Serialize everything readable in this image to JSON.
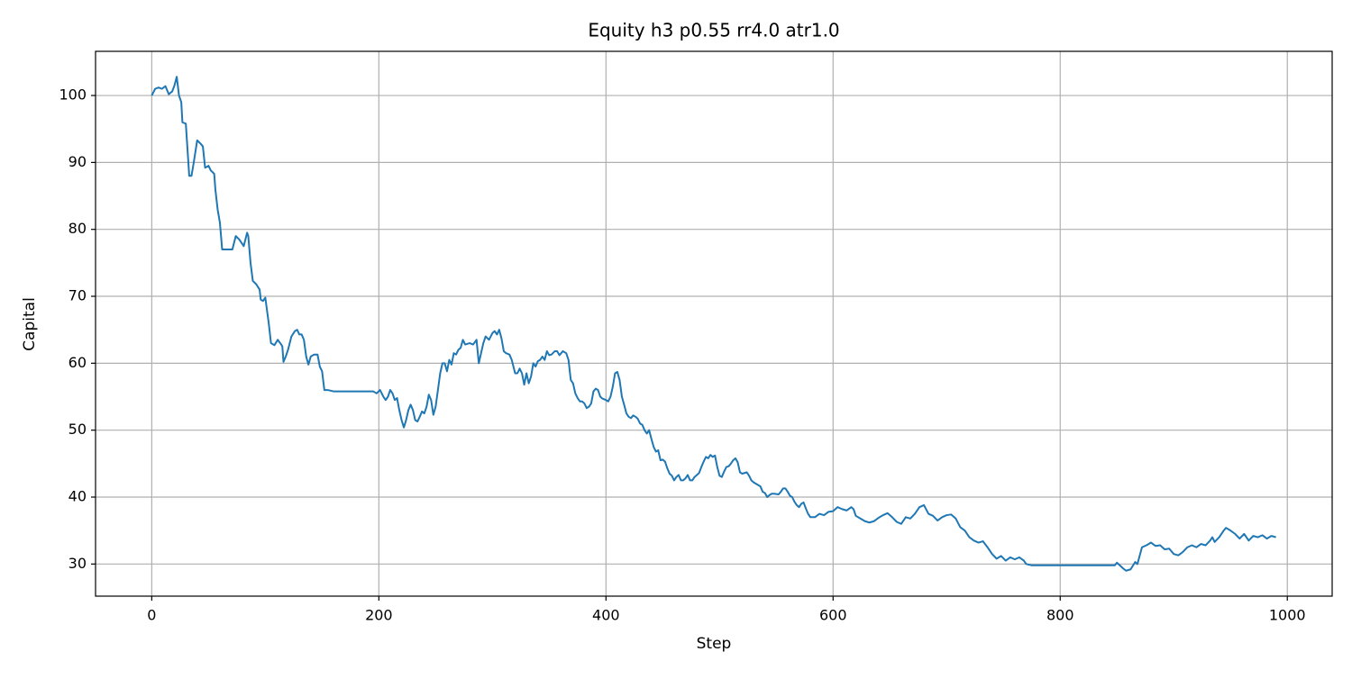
{
  "chart_data": {
    "type": "line",
    "title": "Equity h3 p0.55 rr4.0 atr1.0",
    "x_label": "Step",
    "y_label": "Capital",
    "xlim": [
      -49.5,
      1039.5
    ],
    "ylim": [
      25.2,
      106.6
    ],
    "xticks": [
      0,
      200,
      400,
      600,
      800,
      1000
    ],
    "yticks": [
      30,
      40,
      50,
      60,
      70,
      80,
      90,
      100
    ],
    "grid": true,
    "series": [
      {
        "color": "#1f77b4",
        "x": [
          0,
          3,
          6,
          9,
          12,
          15,
          18,
          20,
          22,
          24,
          26,
          27,
          30,
          33,
          35,
          37,
          40,
          43,
          45,
          47,
          50,
          52,
          55,
          56,
          58,
          60,
          62,
          65,
          68,
          71,
          74,
          77,
          79,
          81,
          84,
          85,
          87,
          89,
          92,
          95,
          96,
          98,
          100,
          103,
          105,
          108,
          111,
          114,
          115,
          116,
          118,
          120,
          123,
          126,
          128,
          130,
          132,
          134,
          136,
          138,
          140,
          143,
          146,
          148,
          150,
          152,
          155,
          160,
          170,
          180,
          190,
          195,
          198,
          201,
          204,
          206,
          208,
          210,
          212,
          214,
          216,
          218,
          220,
          222,
          224,
          226,
          228,
          230,
          232,
          234,
          236,
          238,
          240,
          242,
          244,
          246,
          248,
          250,
          252,
          254,
          256,
          258,
          260,
          262,
          264,
          266,
          268,
          270,
          272,
          274,
          276,
          280,
          283,
          286,
          288,
          290,
          292,
          294,
          297,
          300,
          302,
          304,
          306,
          308,
          310,
          312,
          315,
          317,
          320,
          322,
          324,
          326,
          328,
          330,
          332,
          334,
          336,
          338,
          340,
          342,
          344,
          346,
          348,
          350,
          352,
          355,
          357,
          359,
          362,
          365,
          367,
          369,
          371,
          373,
          375,
          377,
          379,
          381,
          383,
          385,
          387,
          389,
          391,
          393,
          395,
          397,
          400,
          402,
          404,
          406,
          408,
          410,
          412,
          414,
          416,
          418,
          420,
          422,
          424,
          426,
          428,
          430,
          432,
          434,
          436,
          438,
          440,
          442,
          444,
          446,
          448,
          450,
          452,
          454,
          456,
          458,
          460,
          462,
          464,
          466,
          468,
          470,
          472,
          474,
          476,
          478,
          480,
          482,
          484,
          486,
          488,
          490,
          492,
          494,
          496,
          498,
          500,
          502,
          504,
          506,
          508,
          510,
          512,
          514,
          516,
          518,
          520,
          524,
          526,
          528,
          530,
          532,
          534,
          536,
          538,
          540,
          542,
          544,
          546,
          548,
          552,
          554,
          556,
          558,
          560,
          562,
          564,
          566,
          568,
          570,
          572,
          574,
          576,
          578,
          580,
          584,
          588,
          592,
          596,
          600,
          604,
          608,
          612,
          616,
          618,
          620,
          624,
          628,
          632,
          636,
          640,
          644,
          648,
          652,
          656,
          660,
          664,
          668,
          672,
          676,
          680,
          684,
          688,
          692,
          696,
          700,
          704,
          708,
          712,
          716,
          720,
          724,
          728,
          732,
          736,
          740,
          744,
          748,
          752,
          756,
          760,
          764,
          768,
          770,
          775,
          790,
          810,
          830,
          848,
          850,
          855,
          858,
          862,
          866,
          868,
          872,
          876,
          880,
          884,
          888,
          892,
          896,
          900,
          904,
          908,
          912,
          916,
          920,
          924,
          928,
          932,
          934,
          936,
          940,
          944,
          946,
          950,
          954,
          958,
          962,
          966,
          970,
          974,
          978,
          982,
          986,
          990
        ],
        "values": [
          100,
          101,
          101.2,
          101,
          101.4,
          100.2,
          100.6,
          101.5,
          102.8,
          100,
          99,
          96,
          95.8,
          88,
          88,
          90,
          93.3,
          92.8,
          92.4,
          89.2,
          89.5,
          88.8,
          88.3,
          86,
          83,
          81,
          77,
          77,
          77,
          77,
          79,
          78.5,
          78,
          77.5,
          79.5,
          79,
          75,
          72.3,
          71.8,
          71,
          69.5,
          69.3,
          69.8,
          66,
          63,
          62.7,
          63.5,
          62.8,
          62.5,
          60.2,
          61,
          62,
          64,
          64.8,
          65,
          64.3,
          64.3,
          63.5,
          61,
          59.8,
          61,
          61.3,
          61.3,
          59.5,
          58.8,
          56,
          56,
          55.8,
          55.8,
          55.8,
          55.8,
          55.8,
          55.5,
          56,
          55,
          54.5,
          55,
          56,
          55.5,
          54.5,
          54.8,
          53,
          51.5,
          50.4,
          51.5,
          53,
          53.8,
          53,
          51.5,
          51.3,
          52,
          52.8,
          52.5,
          53.5,
          55.3,
          54.5,
          52.3,
          53.5,
          56,
          58.5,
          60,
          60,
          58.8,
          60.5,
          59.8,
          61.5,
          61.3,
          62,
          62.3,
          63.5,
          62.8,
          63,
          62.8,
          63.5,
          60,
          61.5,
          63,
          64,
          63.5,
          64.5,
          64.8,
          64.3,
          65,
          63.7,
          61.8,
          61.5,
          61.3,
          60.5,
          58.5,
          58.5,
          59.2,
          58.5,
          56.8,
          58.5,
          57,
          58,
          60,
          59.5,
          60.3,
          60.5,
          61,
          60.5,
          61.8,
          61.2,
          61.3,
          61.8,
          61.8,
          61.2,
          61.8,
          61.5,
          60.5,
          57.5,
          57,
          55.5,
          54.8,
          54.3,
          54.3,
          54,
          53.3,
          53.5,
          54,
          55.8,
          56.2,
          56,
          55,
          54.7,
          54.5,
          54.3,
          55,
          56.5,
          58.5,
          58.7,
          57.5,
          55,
          53.8,
          52.5,
          52,
          51.8,
          52.2,
          52,
          51.7,
          51,
          50.8,
          50,
          49.5,
          50,
          48.7,
          47.5,
          46.8,
          47,
          45.5,
          45.6,
          45.3,
          44.3,
          43.5,
          43.2,
          42.5,
          43,
          43.3,
          42.5,
          42.5,
          42.8,
          43.3,
          42.5,
          42.5,
          43,
          43.3,
          43.6,
          44.5,
          45.3,
          46,
          45.8,
          46.3,
          46,
          46.2,
          44.5,
          43.2,
          43,
          43.8,
          44.5,
          44.6,
          45,
          45.5,
          45.8,
          45.2,
          43.7,
          43.5,
          43.7,
          43.2,
          42.5,
          42.2,
          42,
          41.8,
          41.6,
          40.8,
          40.6,
          40,
          40.3,
          40.5,
          40.5,
          40.4,
          40.8,
          41.3,
          41.3,
          40.8,
          40.2,
          40,
          39.3,
          38.8,
          38.5,
          39,
          39.2,
          38.3,
          37.5,
          37,
          37,
          37.5,
          37.3,
          37.8,
          37.9,
          38.5,
          38.2,
          38,
          38.5,
          38.2,
          37.2,
          36.8,
          36.4,
          36.2,
          36.4,
          36.9,
          37.3,
          37.6,
          37,
          36.3,
          36,
          37,
          36.8,
          37.5,
          38.5,
          38.8,
          37.5,
          37.2,
          36.5,
          37,
          37.3,
          37.4,
          36.8,
          35.5,
          35,
          34,
          33.5,
          33.2,
          33.4,
          32.5,
          31.5,
          30.8,
          31.2,
          30.5,
          31,
          30.7,
          31,
          30.5,
          30,
          29.8,
          29.8,
          29.8,
          29.8,
          29.8,
          30.2,
          29.4,
          29,
          29.2,
          30.3,
          30,
          32.5,
          32.8,
          33.2,
          32.7,
          32.8,
          32.2,
          32.3,
          31.5,
          31.3,
          31.8,
          32.5,
          32.8,
          32.5,
          33,
          32.8,
          33.5,
          34,
          33.3,
          34,
          35,
          35.4,
          35,
          34.5,
          33.8,
          34.5,
          33.5,
          34.2,
          34,
          34.3,
          33.8,
          34.2,
          34
        ]
      }
    ]
  }
}
